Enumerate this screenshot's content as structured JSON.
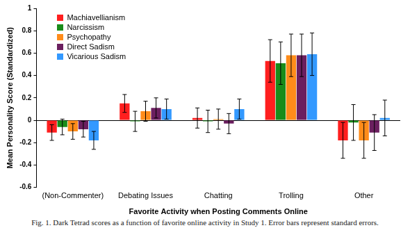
{
  "chart_data": {
    "type": "bar",
    "caption": "Fig. 1. Dark Tetrad scores as a function of favorite online activity in Study 1. Error bars represent standard errors.",
    "x_label": "Favorite Activity when Posting Comments Online",
    "y_label": "Mean Personality Score (Standardized)",
    "categories": [
      "(Non-Commenter)",
      "Debating Issues",
      "Chatting",
      "Trolling",
      "Other"
    ],
    "series": [
      {
        "name": "Machiavellianism",
        "color": "#ff1f1f",
        "values": [
          -0.11,
          0.15,
          0.02,
          0.53,
          -0.18
        ],
        "errors": [
          0.07,
          0.08,
          0.09,
          0.19,
          0.16
        ]
      },
      {
        "name": "Narcissism",
        "color": "#1a8c1a",
        "values": [
          -0.06,
          -0.01,
          -0.01,
          0.51,
          -0.02
        ],
        "errors": [
          0.07,
          0.09,
          0.1,
          0.19,
          0.16
        ]
      },
      {
        "name": "Psychopathy",
        "color": "#ff8c1a",
        "values": [
          -0.1,
          0.08,
          0.01,
          0.58,
          -0.18
        ],
        "errors": [
          0.07,
          0.09,
          0.09,
          0.19,
          0.16
        ]
      },
      {
        "name": "Direct Sadism",
        "color": "#6b1f5f",
        "values": [
          -0.08,
          0.11,
          -0.03,
          0.58,
          -0.11
        ],
        "errors": [
          0.07,
          0.09,
          0.09,
          0.19,
          0.16
        ]
      },
      {
        "name": "Vicarious Sadism",
        "color": "#3399ff",
        "values": [
          -0.18,
          0.1,
          0.1,
          0.59,
          0.02
        ],
        "errors": [
          0.08,
          0.09,
          0.09,
          0.19,
          0.16
        ]
      }
    ],
    "ylim": [
      -0.6,
      1
    ],
    "yticks": [
      -0.6,
      -0.4,
      -0.2,
      0,
      0.2,
      0.4,
      0.6,
      0.8,
      1
    ],
    "grid": false,
    "legend": "upper left"
  }
}
